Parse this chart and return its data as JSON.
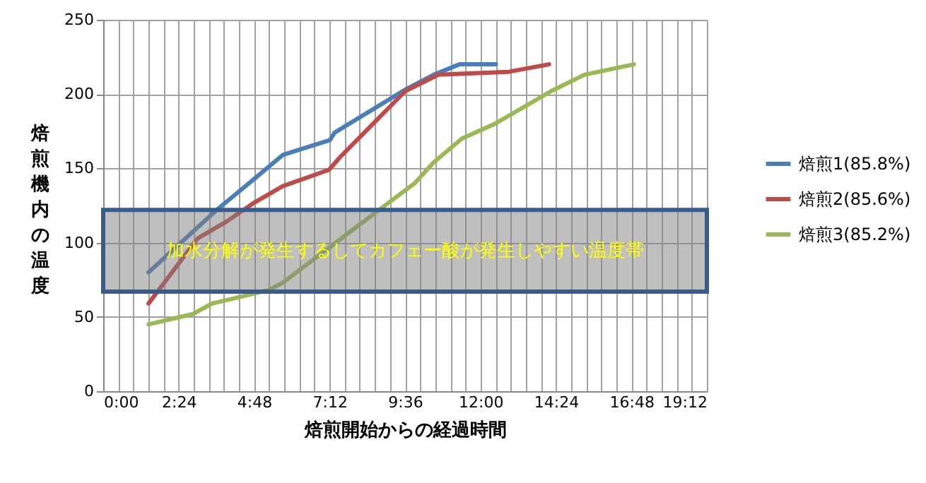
{
  "chart_data": {
    "type": "line",
    "xlabel": "焙煎開始からの経過時間",
    "ylabel": "焙煎機内の温度",
    "series": [
      {
        "name": "焙煎1(85.8%)",
        "color": "#4a7ebb",
        "x": [
          1.44,
          3.61,
          4.81,
          5.71,
          7.21,
          7.36,
          9.61,
          10.51,
          11.33,
          12.49
        ],
        "values": [
          80,
          122,
          143,
          159,
          169,
          174,
          203,
          213,
          220,
          220
        ]
      },
      {
        "name": "焙煎2(85.6%)",
        "color": "#be4b48",
        "x": [
          1.44,
          3.01,
          3.91,
          4.81,
          5.71,
          7.18,
          7.51,
          9.61,
          10.66,
          12.9,
          14.18
        ],
        "values": [
          59,
          103,
          114,
          127,
          138,
          149,
          157,
          202,
          213,
          215,
          220
        ]
      },
      {
        "name": "焙煎3(85.2%)",
        "color": "#98b954",
        "x": [
          1.44,
          2.86,
          3.46,
          5.26,
          5.71,
          8.71,
          9.91,
          10.51,
          11.41,
          12.46,
          14.25,
          15.3,
          16.88
        ],
        "values": [
          45,
          52,
          59,
          68,
          73,
          121,
          140,
          154,
          170,
          180,
          202,
          213,
          220
        ]
      }
    ],
    "xlim": [
      0,
      19.2
    ],
    "ylim": [
      0,
      250
    ],
    "yticks": [
      0,
      50,
      100,
      150,
      200,
      250
    ],
    "xticks": [
      {
        "value": 0,
        "label": "0:00"
      },
      {
        "value": 0.48,
        "label": null
      },
      {
        "value": 0.96,
        "label": null
      },
      {
        "value": 1.44,
        "label": null
      },
      {
        "value": 1.92,
        "label": null
      },
      {
        "value": 2.4,
        "label": "2:24"
      },
      {
        "value": 2.88,
        "label": null
      },
      {
        "value": 3.36,
        "label": null
      },
      {
        "value": 3.84,
        "label": null
      },
      {
        "value": 4.32,
        "label": null
      },
      {
        "value": 4.8,
        "label": "4:48"
      },
      {
        "value": 5.28,
        "label": null
      },
      {
        "value": 5.76,
        "label": null
      },
      {
        "value": 6.24,
        "label": null
      },
      {
        "value": 6.72,
        "label": null
      },
      {
        "value": 7.2,
        "label": "7:12"
      },
      {
        "value": 7.68,
        "label": null
      },
      {
        "value": 8.16,
        "label": null
      },
      {
        "value": 8.64,
        "label": null
      },
      {
        "value": 9.12,
        "label": null
      },
      {
        "value": 9.6,
        "label": "9:36"
      },
      {
        "value": 10.08,
        "label": null
      },
      {
        "value": 10.56,
        "label": null
      },
      {
        "value": 11.04,
        "label": null
      },
      {
        "value": 11.52,
        "label": null
      },
      {
        "value": 12,
        "label": "12:00"
      },
      {
        "value": 12.48,
        "label": null
      },
      {
        "value": 12.96,
        "label": null
      },
      {
        "value": 13.44,
        "label": null
      },
      {
        "value": 13.92,
        "label": null
      },
      {
        "value": 14.4,
        "label": "14:24"
      },
      {
        "value": 14.88,
        "label": null
      },
      {
        "value": 15.36,
        "label": null
      },
      {
        "value": 15.84,
        "label": null
      },
      {
        "value": 16.32,
        "label": null
      },
      {
        "value": 16.8,
        "label": "16:48"
      },
      {
        "value": 17.28,
        "label": null
      },
      {
        "value": 17.76,
        "label": null
      },
      {
        "value": 18.24,
        "label": null
      },
      {
        "value": 18.72,
        "label": null
      },
      {
        "value": 19.2,
        "label": "19:12"
      }
    ],
    "bands": [
      {
        "axis": "y",
        "from": 67,
        "to": 122,
        "label": "加水分解が発生するしてカフェー酸が発生しやすい温度帯",
        "color": "#808080"
      }
    ],
    "grid": true,
    "legend": "right",
    "marker": "none",
    "line_style": "solid"
  }
}
